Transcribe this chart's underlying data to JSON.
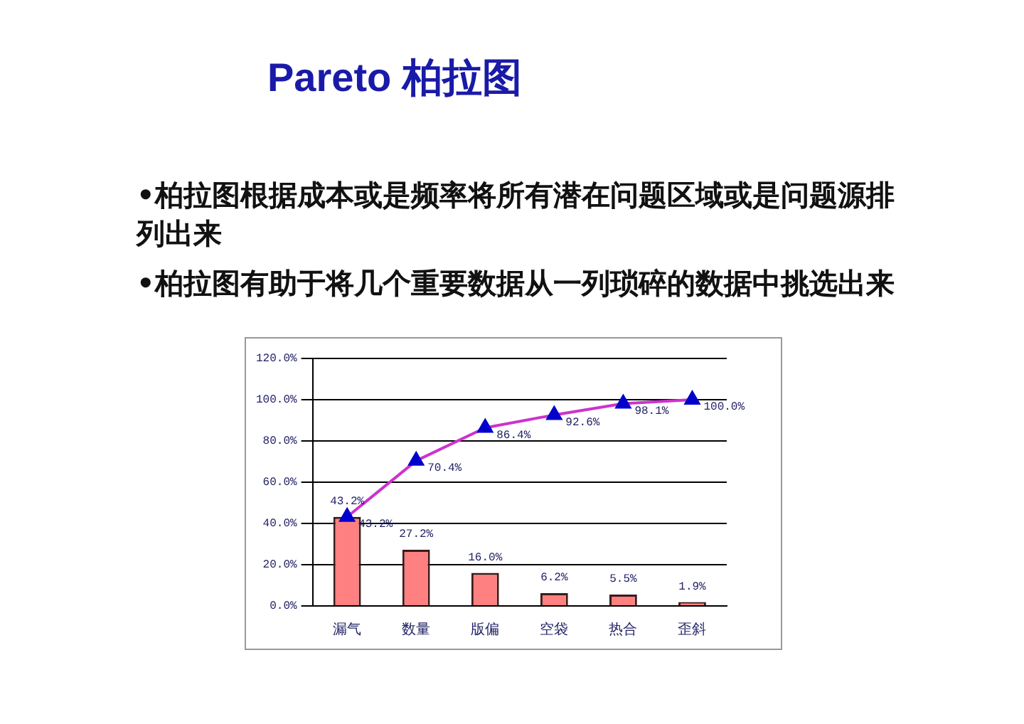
{
  "chart_data": {
    "type": "bar",
    "title": "Pareto 柏拉图",
    "annotations": [
      "•柏拉图根据成本或是频率将所有潜在问题区域或是问题源排列出来",
      "•柏拉图有助于将几个重要数据从一列琐碎的数据中挑选出来"
    ],
    "categories": [
      "漏气",
      "数量",
      "版偏",
      "空袋",
      "热合",
      "歪斜"
    ],
    "series": [
      {
        "color": "#ff8080",
        "values": [
          43.2,
          27.2,
          16.0,
          6.2,
          5.5,
          1.9
        ],
        "value_labels": [
          "43.2%",
          "27.2%",
          "16.0%",
          "6.2%",
          "5.5%",
          "1.9%"
        ]
      },
      {
        "type": "line",
        "color": "#cc33cc",
        "colors": [
          "#0000cc",
          "#0000cc",
          "#0000cc",
          "#0000cc",
          "#0000cc",
          "#0000cc"
        ],
        "marker": "triangle",
        "values": [
          43.2,
          70.4,
          86.4,
          92.6,
          98.1,
          100.0
        ],
        "value_labels": [
          "43.2%",
          "70.4%",
          "86.4%",
          "92.6%",
          "98.1%",
          "100.0%"
        ]
      }
    ],
    "ylim": [
      0,
      120
    ],
    "yticks": [
      {
        "value": 0,
        "label": "0.0%"
      },
      {
        "value": 20,
        "label": "20.0%"
      },
      {
        "value": 40,
        "label": "40.0%"
      },
      {
        "value": 60,
        "label": "60.0%"
      },
      {
        "value": 80,
        "label": "80.0%"
      },
      {
        "value": 100,
        "label": "100.0%"
      },
      {
        "value": 120,
        "label": "120.0%"
      }
    ],
    "grid": "y",
    "legend": false
  }
}
